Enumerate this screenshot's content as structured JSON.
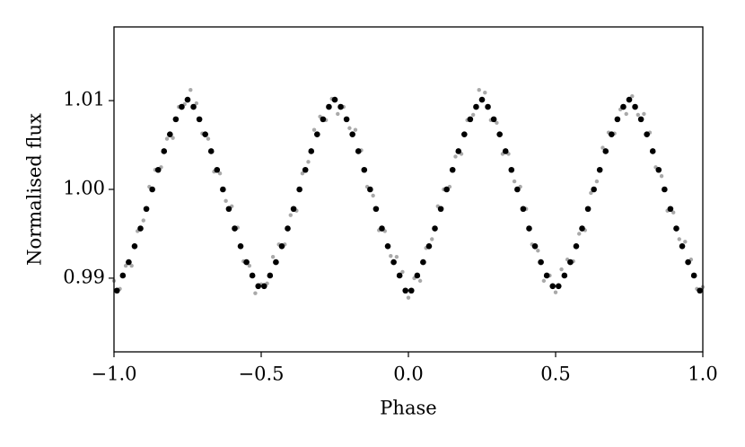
{
  "chart_data": {
    "type": "scatter",
    "x_label": "Phase",
    "y_label": "Normalised flux",
    "xlim": [
      -1,
      1
    ],
    "ylim": [
      0.9817,
      1.0183
    ],
    "xticks": [
      {
        "value": -1,
        "label": "−1.0"
      },
      {
        "value": -0.5,
        "label": "−0.5"
      },
      {
        "value": 0,
        "label": "0.0"
      },
      {
        "value": 0.5,
        "label": "0.5"
      },
      {
        "value": 1,
        "label": "1.0"
      }
    ],
    "yticks": [
      0.99,
      {
        "value": 1,
        "label": "1.00"
      },
      1.01
    ],
    "series": [
      {
        "color": "#a9a9a9",
        "x": [
          -1.0,
          -0.98,
          -0.96,
          -0.94,
          -0.92,
          -0.9,
          -0.88,
          -0.86,
          -0.84,
          -0.82,
          -0.8,
          -0.78,
          -0.76,
          -0.74,
          -0.72,
          -0.7,
          -0.68,
          -0.66,
          -0.64,
          -0.62,
          -0.6,
          -0.58,
          -0.56,
          -0.54,
          -0.52,
          -0.5,
          -0.48,
          -0.46,
          -0.44,
          -0.42,
          -0.4,
          -0.38,
          -0.36,
          -0.34,
          -0.32,
          -0.3,
          -0.28,
          -0.26,
          -0.24,
          -0.22,
          -0.2,
          -0.18,
          -0.16,
          -0.14,
          -0.12,
          -0.1,
          -0.08,
          -0.06,
          -0.04,
          -0.02,
          0.0,
          0.02,
          0.04,
          0.06,
          0.08,
          0.1,
          0.12,
          0.14,
          0.16,
          0.18,
          0.2,
          0.22,
          0.24,
          0.26,
          0.28,
          0.3,
          0.32,
          0.34,
          0.36,
          0.38,
          0.4,
          0.42,
          0.44,
          0.46,
          0.48,
          0.5,
          0.52,
          0.54,
          0.56,
          0.58,
          0.6,
          0.62,
          0.64,
          0.66,
          0.68,
          0.7,
          0.72,
          0.74,
          0.76,
          0.78,
          0.8,
          0.82,
          0.84,
          0.86,
          0.88,
          0.9,
          0.92,
          0.94,
          0.96,
          0.98,
          1.0
        ],
        "values": [
          0.9897,
          0.9888,
          0.9914,
          0.9914,
          0.9953,
          0.9965,
          1.0003,
          1.0022,
          1.0025,
          1.0057,
          1.0058,
          1.0093,
          1.0096,
          1.0112,
          1.0097,
          1.0063,
          1.0057,
          1.002,
          1.0018,
          0.9987,
          0.9981,
          0.9957,
          0.9919,
          0.9914,
          0.9883,
          0.9893,
          0.9894,
          0.9924,
          0.9938,
          0.9938,
          0.9971,
          0.9976,
          1.0018,
          1.0031,
          1.0067,
          1.0082,
          1.0078,
          1.0102,
          1.0085,
          1.0093,
          1.0069,
          1.0067,
          1.0044,
          1.0003,
          0.9993,
          0.9954,
          0.9953,
          0.9925,
          0.9924,
          0.9907,
          0.9878,
          0.99,
          0.9897,
          0.9934,
          0.9944,
          0.9981,
          1.0,
          1.0003,
          1.0037,
          1.004,
          1.0078,
          1.0084,
          1.0112,
          1.0109,
          1.0078,
          1.0075,
          1.004,
          1.004,
          1.0009,
          1.0003,
          0.9978,
          0.9938,
          0.9931,
          0.9897,
          0.9903,
          0.9884,
          0.991,
          0.9921,
          0.9919,
          0.995,
          0.9954,
          0.9996,
          1.0009,
          1.0047,
          1.0064,
          1.0063,
          1.009,
          1.0085,
          1.0105,
          1.0084,
          1.0085,
          1.0064,
          1.0025,
          1.0015,
          0.9976,
          0.9974,
          0.9944,
          0.9941,
          0.9921,
          0.9888,
          0.989
        ]
      },
      {
        "color": "#000000",
        "x": [
          -0.99,
          -0.97,
          -0.95,
          -0.93,
          -0.91,
          -0.89,
          -0.87,
          -0.85,
          -0.83,
          -0.81,
          -0.79,
          -0.77,
          -0.75,
          -0.73,
          -0.71,
          -0.69,
          -0.67,
          -0.65,
          -0.63,
          -0.61,
          -0.59,
          -0.57,
          -0.55,
          -0.53,
          -0.51,
          -0.49,
          -0.47,
          -0.45,
          -0.43,
          -0.41,
          -0.39,
          -0.37,
          -0.35,
          -0.33,
          -0.31,
          -0.29,
          -0.27,
          -0.25,
          -0.23,
          -0.21,
          -0.19,
          -0.17,
          -0.15,
          -0.13,
          -0.11,
          -0.09,
          -0.07,
          -0.05,
          -0.03,
          -0.01,
          0.01,
          0.03,
          0.05,
          0.07,
          0.09,
          0.11,
          0.13,
          0.15,
          0.17,
          0.19,
          0.21,
          0.23,
          0.25,
          0.27,
          0.29,
          0.31,
          0.33,
          0.35,
          0.37,
          0.39,
          0.41,
          0.43,
          0.45,
          0.47,
          0.49,
          0.51,
          0.53,
          0.55,
          0.57,
          0.59,
          0.61,
          0.63,
          0.65,
          0.67,
          0.69,
          0.71,
          0.73,
          0.75,
          0.77,
          0.79,
          0.81,
          0.83,
          0.85,
          0.87,
          0.89,
          0.91,
          0.93,
          0.95,
          0.97,
          0.99
        ],
        "values": [
          0.9886,
          0.9903,
          0.9918,
          0.9936,
          0.9956,
          0.9978,
          1.0,
          1.0022,
          1.0043,
          1.0062,
          1.0079,
          1.0093,
          1.0101,
          1.0093,
          1.0079,
          1.0062,
          1.0043,
          1.0022,
          1.0,
          0.9978,
          0.9956,
          0.9936,
          0.9918,
          0.9903,
          0.9891,
          0.9891,
          0.9903,
          0.9918,
          0.9936,
          0.9956,
          0.9978,
          1.0,
          1.0022,
          1.0043,
          1.0062,
          1.0079,
          1.0093,
          1.0101,
          1.0093,
          1.0079,
          1.0062,
          1.0043,
          1.0022,
          1.0,
          0.9978,
          0.9956,
          0.9936,
          0.9918,
          0.9903,
          0.9886,
          0.9886,
          0.9903,
          0.9918,
          0.9936,
          0.9956,
          0.9978,
          1.0,
          1.0022,
          1.0043,
          1.0062,
          1.0079,
          1.0093,
          1.0101,
          1.0093,
          1.0079,
          1.0062,
          1.0043,
          1.0022,
          1.0,
          0.9978,
          0.9956,
          0.9936,
          0.9918,
          0.9903,
          0.9891,
          0.9891,
          0.9903,
          0.9918,
          0.9936,
          0.9956,
          0.9978,
          1.0,
          1.0022,
          1.0043,
          1.0062,
          1.0079,
          1.0093,
          1.0101,
          1.0093,
          1.0079,
          1.0062,
          1.0043,
          1.0022,
          1.0,
          0.9978,
          0.9956,
          0.9936,
          0.9918,
          0.9903,
          0.9886
        ]
      }
    ]
  }
}
